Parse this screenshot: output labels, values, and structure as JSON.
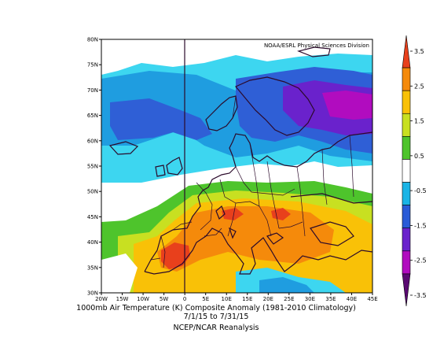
{
  "credit": "NOAA/ESRL Physical Sciences Division",
  "caption": {
    "line1": "1000mb Air Temperature (K) Composite Anomaly (1981-2010 Climatology)",
    "line2": "7/1/15  to 7/31/15",
    "line3": "NCEP/NCAR Reanalysis"
  },
  "lat_ticks": [
    "80N",
    "75N",
    "70N",
    "65N",
    "60N",
    "55N",
    "50N",
    "45N",
    "40N",
    "35N",
    "30N"
  ],
  "lon_ticks": [
    "20W",
    "15W",
    "10W",
    "5W",
    "0",
    "5E",
    "10E",
    "15E",
    "20E",
    "25E",
    "30E",
    "35E",
    "40E",
    "45E"
  ],
  "colorbar": {
    "labels": [
      "3.5",
      "2.5",
      "1.5",
      "0.5",
      "-0.5",
      "-1.5",
      "-2.5",
      "-3.5"
    ],
    "colors": [
      "#e8401c",
      "#f58a0b",
      "#f9c107",
      "#c8e021",
      "#4ec42c",
      "#ffffff",
      "#1ab4e6",
      "#2a5bd7",
      "#6a22cc",
      "#b10cbf",
      "#5a0a72"
    ]
  },
  "map": {
    "type": "filled-contour-map",
    "region": "Europe",
    "units": "K",
    "lon_range": [
      -20,
      45
    ],
    "lat_range": [
      30,
      80
    ]
  }
}
